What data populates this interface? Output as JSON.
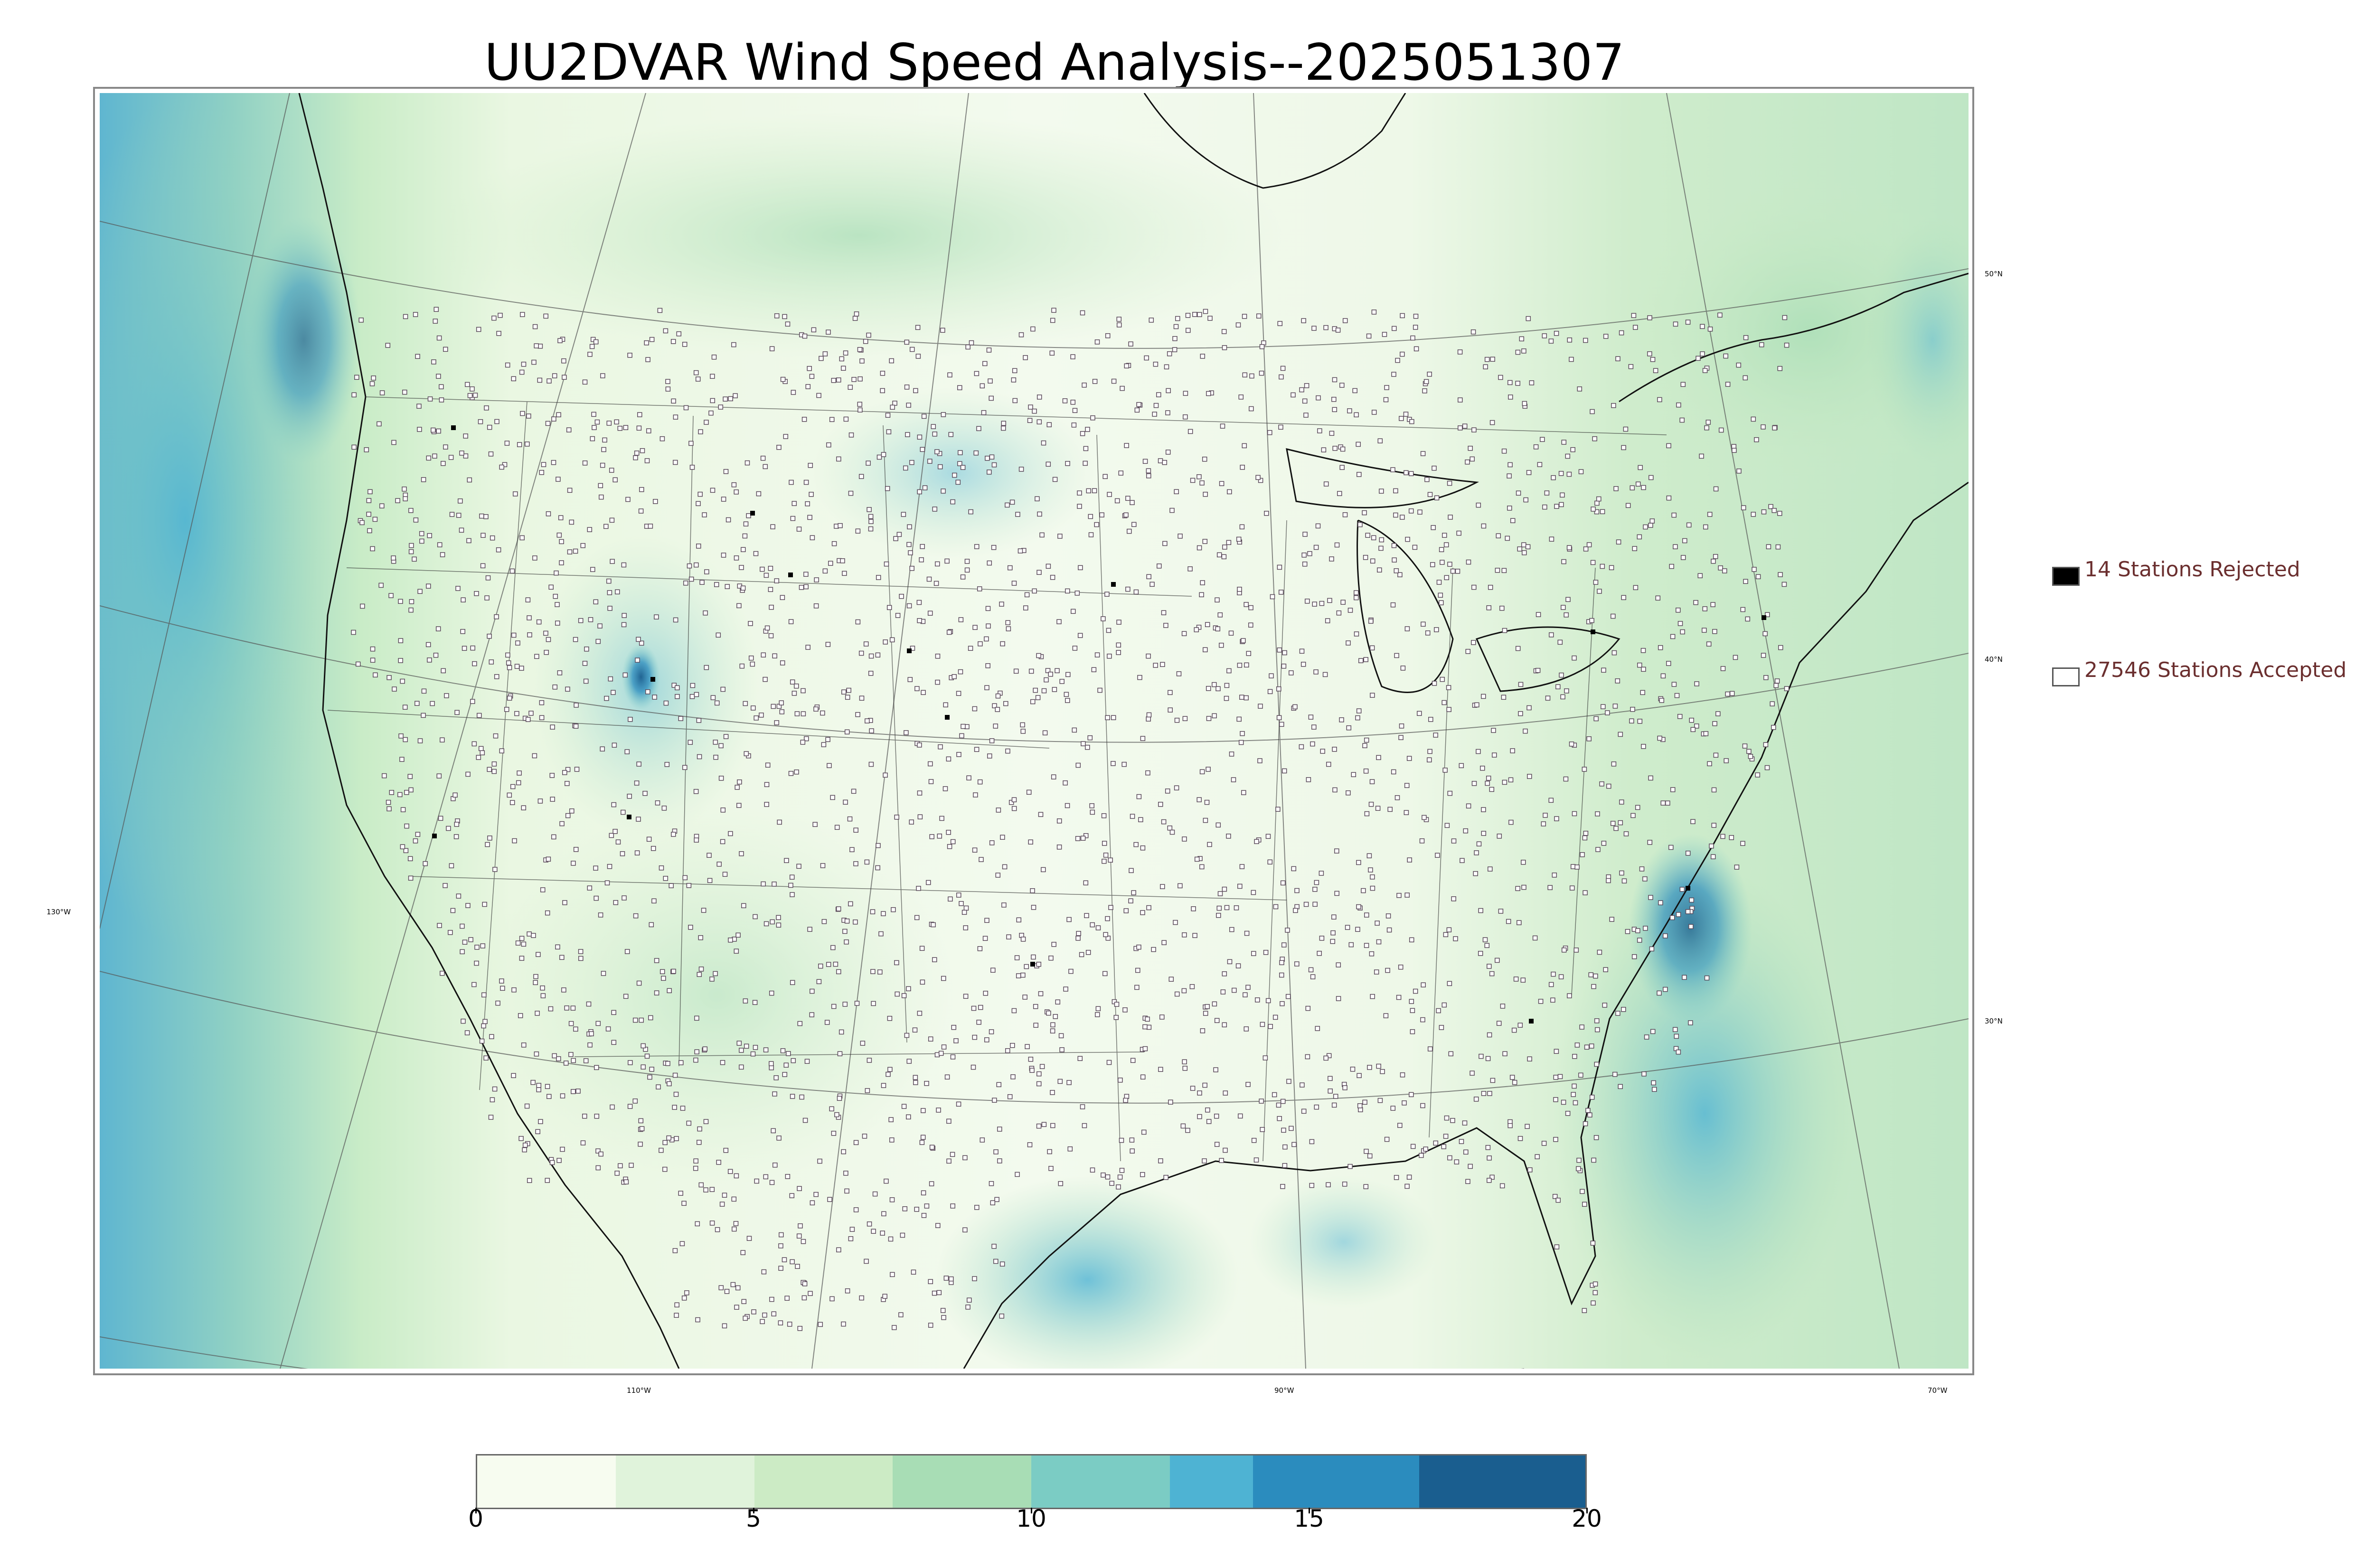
{
  "title": "UU2DVAR Wind Speed Analysis--2025051307",
  "map": {
    "type": "wind-speed-analysis",
    "region": "Continental United States",
    "latitude_labels": [
      "50°N",
      "40°N",
      "30°N"
    ],
    "longitude_labels": [
      "110°W",
      "90°W",
      "70°W",
      "130°W"
    ]
  },
  "legend": {
    "rejected": {
      "label": "14 Stations Rejected",
      "count": 14,
      "color": "#000000"
    },
    "accepted": {
      "label": "27546 Stations Accepted",
      "count": 27546,
      "color": "#ffffff"
    },
    "label_color": "#6b2f2f"
  },
  "colorbar": {
    "min": 0,
    "max": 20,
    "tick_labels": [
      "0",
      "5",
      "10",
      "15",
      "20"
    ],
    "ticks": [
      0,
      5,
      10,
      15,
      20
    ],
    "colors": [
      "#f7fcf0",
      "#e0f3db",
      "#ccebc5",
      "#a8ddb5",
      "#7bccc4",
      "#4eb3d3",
      "#2b8cbe",
      "#1a5e8f"
    ],
    "bounds": [
      0,
      2.5,
      5,
      7.5,
      10,
      12.5,
      14,
      17,
      20
    ]
  }
}
